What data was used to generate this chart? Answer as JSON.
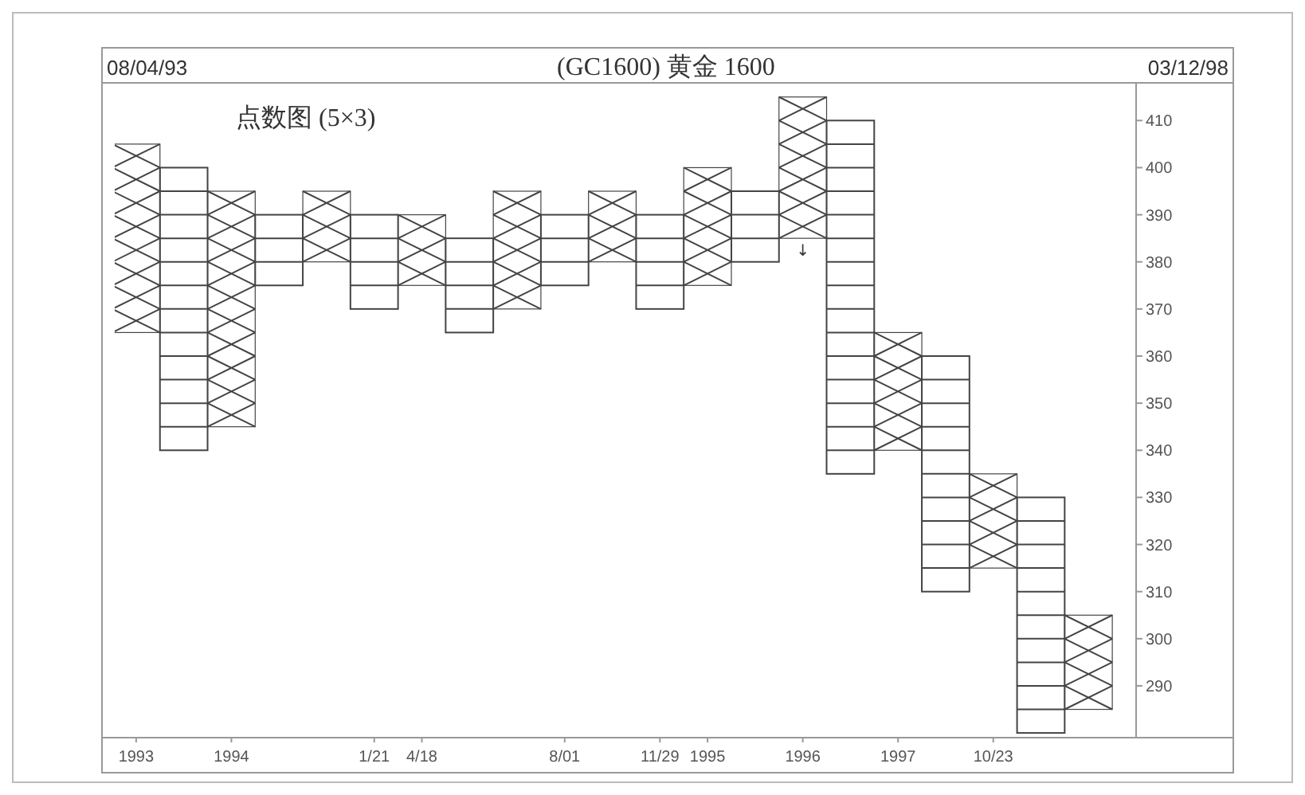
{
  "chart_data": {
    "type": "bar",
    "title": "(GC1600) 黄金 1600",
    "subtitle": "点数图 (5×3)",
    "annotations": [
      "08/04/93",
      "03/12/98",
      {
        "text": "↓",
        "x": "1996",
        "y": 385
      }
    ],
    "categories": [
      "1993",
      null,
      "1994",
      null,
      null,
      "1/21",
      "4/18",
      null,
      null,
      "8/01",
      null,
      "11/29",
      "1995",
      null,
      "1996",
      null,
      "1997",
      null,
      "10/23",
      null,
      null
    ],
    "series": [
      {
        "color": "#444444",
        "marker": "cross",
        "base": [
          365,
          null,
          345,
          null,
          380,
          null,
          375,
          null,
          370,
          null,
          380,
          null,
          375,
          null,
          385,
          null,
          340,
          null,
          315,
          null,
          285
        ],
        "values": [
          40,
          null,
          50,
          null,
          15,
          null,
          15,
          null,
          25,
          null,
          15,
          null,
          25,
          null,
          30,
          null,
          25,
          null,
          20,
          null,
          20
        ]
      },
      {
        "color": "#444444",
        "marker": "square",
        "base": [
          null,
          340,
          null,
          375,
          null,
          370,
          null,
          365,
          null,
          375,
          null,
          370,
          null,
          380,
          null,
          335,
          null,
          310,
          null,
          280,
          null
        ],
        "values": [
          null,
          60,
          null,
          15,
          null,
          20,
          null,
          20,
          null,
          15,
          null,
          20,
          null,
          15,
          null,
          75,
          null,
          50,
          null,
          50,
          null
        ]
      }
    ],
    "ylim": [
      279,
      418
    ],
    "yticks": [
      290,
      300,
      310,
      320,
      330,
      340,
      350,
      360,
      370,
      380,
      390,
      400,
      410
    ],
    "grid": false
  }
}
